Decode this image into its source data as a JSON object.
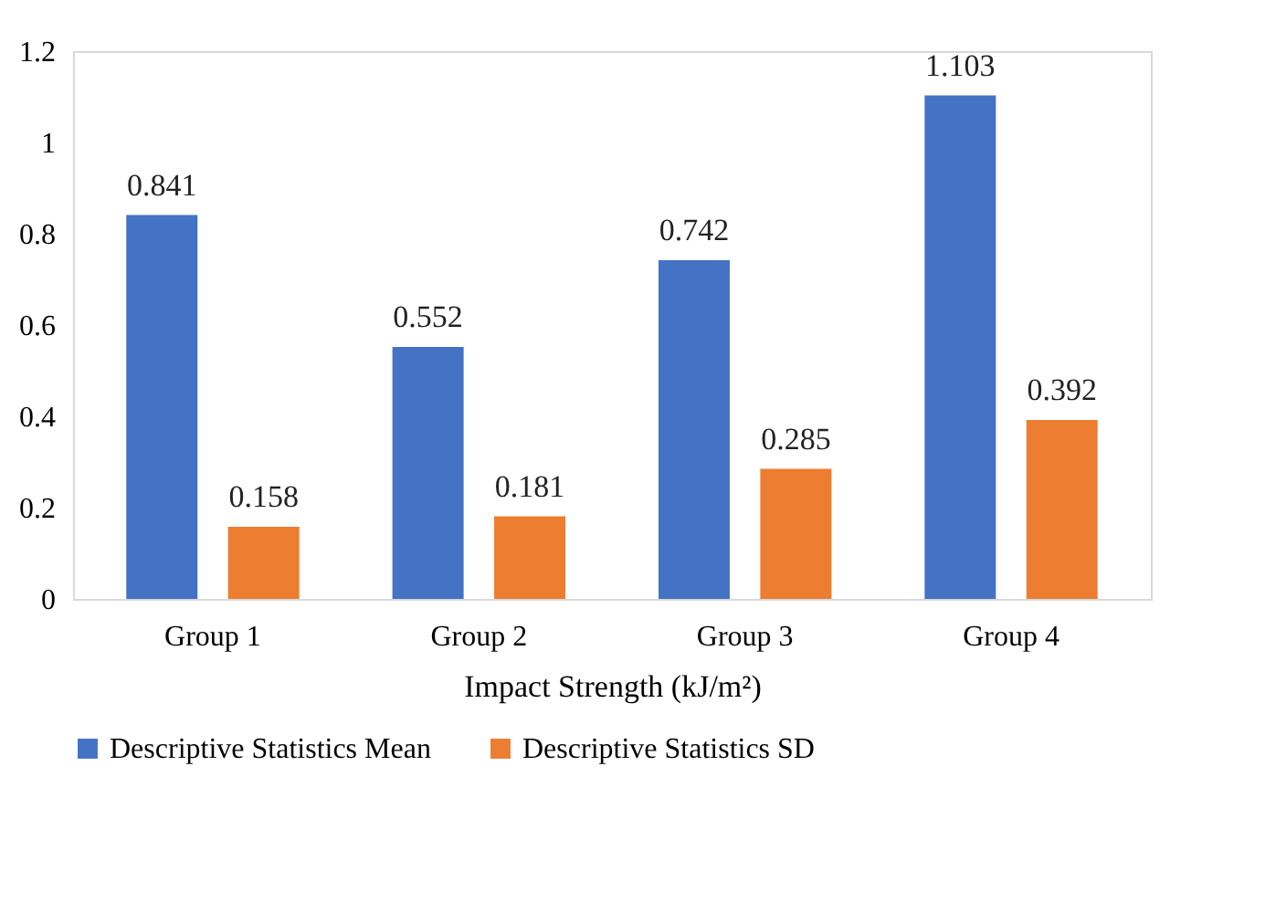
{
  "chart_data": {
    "type": "bar",
    "xlabel": "Impact Strength (kJ/m²)",
    "categories": [
      "Group 1",
      "Group 2",
      "Group 3",
      "Group 4"
    ],
    "series": [
      {
        "name": "Descriptive Statistics Mean",
        "color": "#4472c4",
        "values": [
          0.841,
          0.552,
          0.742,
          1.103
        ]
      },
      {
        "name": "Descriptive Statistics SD",
        "color": "#ed7d31",
        "values": [
          0.158,
          0.181,
          0.285,
          0.392
        ]
      }
    ],
    "ylim": [
      0,
      1.2
    ],
    "yticks": [
      0,
      0.2,
      0.4,
      0.6,
      0.8,
      1,
      1.2
    ],
    "grid": false,
    "legend": "bottom",
    "data_labels": true
  }
}
